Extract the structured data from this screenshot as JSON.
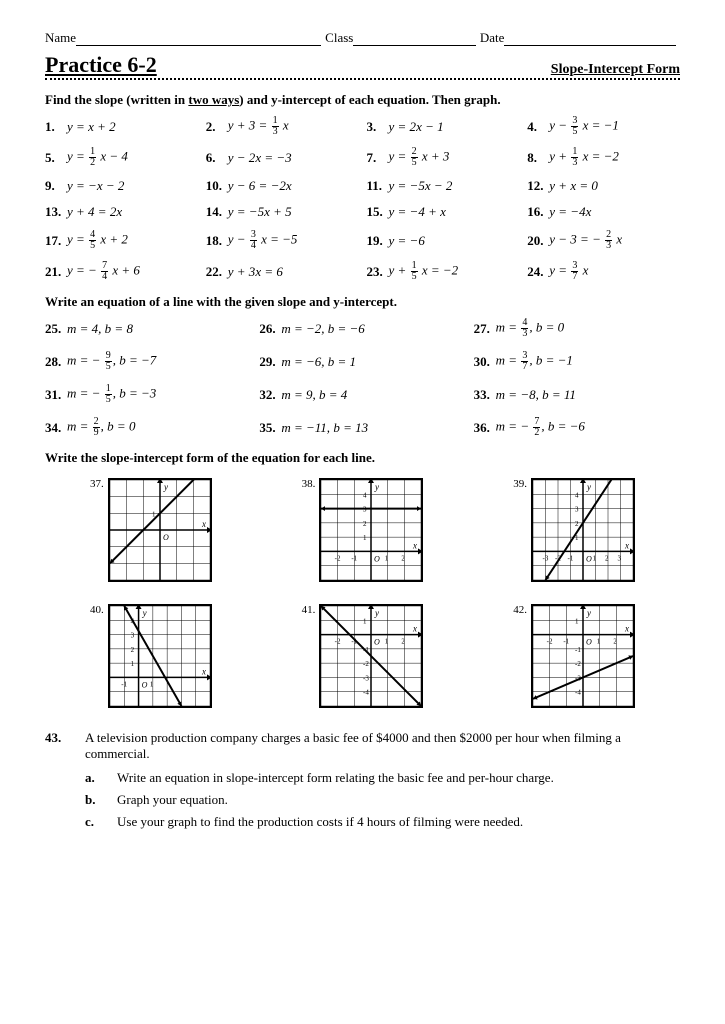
{
  "header": {
    "name_label": "Name",
    "class_label": "Class",
    "date_label": "Date"
  },
  "title": {
    "main": "Practice 6-2",
    "sub": "Slope-Intercept Form"
  },
  "section1": {
    "instruction_pre": "Find the slope (written in ",
    "instruction_u": "two ways",
    "instruction_post": ") and y-intercept of each equation. Then graph.",
    "problems": [
      {
        "n": "1.",
        "eq": "y = x + 2"
      },
      {
        "n": "2.",
        "eq": "y + 3 = − ⅓ x",
        "frac": {
          "neg": true,
          "n": "1",
          "d": "3",
          "pre": "y + 3 = ",
          "post": " x"
        }
      },
      {
        "n": "3.",
        "eq": "y = 2x − 1"
      },
      {
        "n": "4.",
        "frac": {
          "pre": "y − ",
          "n": "3",
          "d": "5",
          "post": " x  = −1"
        }
      },
      {
        "n": "5.",
        "frac": {
          "pre": "y = ",
          "n": "1",
          "d": "2",
          "post": " x − 4"
        }
      },
      {
        "n": "6.",
        "eq": "y − 2x = −3"
      },
      {
        "n": "7.",
        "frac": {
          "pre": "y = ",
          "n": "2",
          "d": "5",
          "post": " x + 3"
        }
      },
      {
        "n": "8.",
        "frac": {
          "pre": "y + ",
          "n": "1",
          "d": "3",
          "post": " x = −2"
        }
      },
      {
        "n": "9.",
        "eq": "y = −x − 2"
      },
      {
        "n": "10.",
        "eq": "y − 6 = −2x"
      },
      {
        "n": "11.",
        "eq": "y = −5x − 2"
      },
      {
        "n": "12.",
        "eq": "y + x = 0"
      },
      {
        "n": "13.",
        "eq": "y + 4 = 2x"
      },
      {
        "n": "14.",
        "eq": "y = −5x + 5"
      },
      {
        "n": "15.",
        "eq": "y = −4 + x"
      },
      {
        "n": "16.",
        "eq": "y = −4x"
      },
      {
        "n": "17.",
        "frac": {
          "pre": "y = ",
          "n": "4",
          "d": "5",
          "post": " x + 2"
        }
      },
      {
        "n": "18.",
        "frac": {
          "pre": "y − ",
          "n": "3",
          "d": "4",
          "post": " x = −5"
        }
      },
      {
        "n": "19.",
        "eq": "y = −6"
      },
      {
        "n": "20.",
        "frac": {
          "pre": "y − 3 = − ",
          "n": "2",
          "d": "3",
          "post": " x"
        }
      },
      {
        "n": "21.",
        "frac": {
          "pre": "y = − ",
          "n": "7",
          "d": "4",
          "post": " x + 6"
        }
      },
      {
        "n": "22.",
        "eq": "y + 3x = 6"
      },
      {
        "n": "23.",
        "frac": {
          "pre": "y + ",
          "n": "1",
          "d": "5",
          "post": " x = −2"
        }
      },
      {
        "n": "24.",
        "frac": {
          "pre": "y = ",
          "n": "3",
          "d": "7",
          "post": " x"
        }
      }
    ]
  },
  "section2": {
    "instruction": "Write an equation of a line with the given slope and y-intercept.",
    "problems": [
      {
        "n": "25.",
        "eq": "m = 4, b = 8"
      },
      {
        "n": "26.",
        "eq": "m = −2, b = −6"
      },
      {
        "n": "27.",
        "frac": {
          "pre": "m = ",
          "n": "4",
          "d": "3",
          "post": ",  b = 0"
        }
      },
      {
        "n": "28.",
        "frac": {
          "pre": "m = − ",
          "n": "9",
          "d": "5",
          "post": ",  b = −7"
        }
      },
      {
        "n": "29.",
        "eq": "m = −6, b = 1"
      },
      {
        "n": "30.",
        "frac": {
          "pre": "m = ",
          "n": "3",
          "d": "7",
          "post": ",  b = −1"
        }
      },
      {
        "n": "31.",
        "frac": {
          "pre": "m = − ",
          "n": "1",
          "d": "5",
          "post": ",  b = −3"
        }
      },
      {
        "n": "32.",
        "eq": "m = 9, b = 4"
      },
      {
        "n": "33.",
        "eq": "m = −8, b = 11"
      },
      {
        "n": "34.",
        "frac": {
          "pre": "m = ",
          "n": "2",
          "d": "9",
          "post": ",  b = 0"
        }
      },
      {
        "n": "35.",
        "eq": "m = −11, b = 13"
      },
      {
        "n": "36.",
        "frac": {
          "pre": "m = − ",
          "n": "7",
          "d": "2",
          "post": ",  b = −6"
        }
      }
    ]
  },
  "section3": {
    "instruction": "Write the slope-intercept form of the equation for each line.",
    "graphs": [
      {
        "n": "37.",
        "xmin": -3,
        "xmax": 3,
        "ymin": -3,
        "ymax": 3,
        "line": [
          [
            -3,
            -2
          ],
          [
            3,
            4
          ]
        ],
        "ylabels": [
          1
        ],
        "xlabel": "O"
      },
      {
        "n": "38.",
        "xmin": -3,
        "xmax": 3,
        "ymin": -2,
        "ymax": 5,
        "line": [
          [
            -3,
            3
          ],
          [
            3,
            3
          ]
        ],
        "ylabels": [
          1,
          2,
          3,
          4
        ],
        "xlabels": [
          -2,
          -1,
          1,
          2
        ]
      },
      {
        "n": "39.",
        "xmin": -4,
        "xmax": 4,
        "ymin": -2,
        "ymax": 5,
        "line": [
          [
            -3,
            -2
          ],
          [
            3,
            6
          ]
        ],
        "ylabels": [
          1,
          2,
          3,
          4
        ],
        "xlabels": [
          -3,
          -2,
          -1,
          1,
          2,
          3
        ]
      },
      {
        "n": "40.",
        "xmin": -2,
        "xmax": 5,
        "ymin": -2,
        "ymax": 5,
        "line": [
          [
            -1,
            5
          ],
          [
            3,
            -2
          ]
        ],
        "ylabels": [
          1,
          2,
          3,
          4
        ],
        "xlabels": [
          -1,
          1
        ]
      },
      {
        "n": "41.",
        "xmin": -3,
        "xmax": 3,
        "ymin": -5,
        "ymax": 2,
        "line": [
          [
            -3,
            2
          ],
          [
            3,
            -5
          ]
        ],
        "ylabels": [
          -1,
          -2,
          -3,
          -4,
          1
        ],
        "xlabels": [
          -2,
          -1,
          1,
          2
        ]
      },
      {
        "n": "42.",
        "xmin": -3,
        "xmax": 3,
        "ymin": -5,
        "ymax": 2,
        "line": [
          [
            -3,
            -4.5
          ],
          [
            3,
            -1.5
          ]
        ],
        "ylabels": [
          -1,
          -2,
          -3,
          -4,
          1
        ],
        "xlabels": [
          -2,
          -1,
          1,
          2
        ]
      }
    ]
  },
  "section4": {
    "n": "43.",
    "body": "A television production company charges a basic fee of $4000 and then $2000 per hour when filming a commercial.",
    "subparts": [
      {
        "l": "a.",
        "t": "Write an equation in slope-intercept form relating the basic fee and per-hour charge."
      },
      {
        "l": "b.",
        "t": "Graph your equation."
      },
      {
        "l": "c.",
        "t": "Use your graph to find the production costs if 4 hours of filming were needed."
      }
    ]
  },
  "style": {
    "graph_size": 100,
    "graph_cell": 14,
    "grid_color": "#000000",
    "line_color": "#000000",
    "line_width": 2,
    "axis_width": 1,
    "tick_font": 8
  }
}
